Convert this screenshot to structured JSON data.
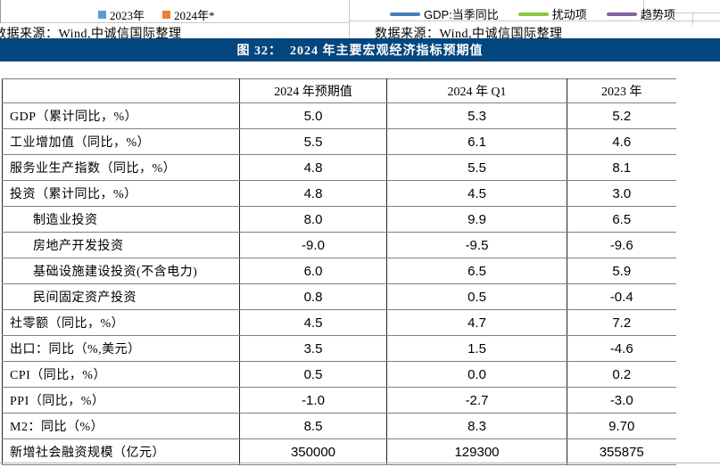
{
  "top_area": {
    "left_legend": {
      "items": [
        {
          "name": "2023-series",
          "label": "2023年",
          "color": "#5B9BD5",
          "marker": "square"
        },
        {
          "name": "2024-series",
          "label": "2024年*",
          "color": "#ED7D31",
          "marker": "square"
        }
      ],
      "source": "数据来源：Wind,中诚信国际整理"
    },
    "right_legend": {
      "items": [
        {
          "name": "gdp-line",
          "label": "GDP:当季同比",
          "color": "#4A7EBB",
          "marker": "line"
        },
        {
          "name": "noise-line",
          "label": "扰动项",
          "color": "#8DC63F",
          "marker": "line"
        },
        {
          "name": "trend-line",
          "label": "趋势项",
          "color": "#8064A2",
          "marker": "line"
        }
      ],
      "source": "数据来源：Wind,中诚信国际整理"
    }
  },
  "banner": {
    "title": "图 32：  2024 年主要宏观经济指标预期值",
    "bg": "#04477E",
    "fg": "#FFFFFF"
  },
  "table": {
    "columns": [
      "",
      "2024 年预期值",
      "2024 年 Q1",
      "2023 年"
    ],
    "rows": [
      {
        "label": "GDP（累计同比，%）",
        "indent": false,
        "values": [
          "5.0",
          "5.3",
          "5.2"
        ]
      },
      {
        "label": "工业增加值（同比，%）",
        "indent": false,
        "values": [
          "5.5",
          "6.1",
          "4.6"
        ]
      },
      {
        "label": "服务业生产指数（同比，%）",
        "indent": false,
        "values": [
          "4.8",
          "5.5",
          "8.1"
        ]
      },
      {
        "label": "投资（累计同比，%）",
        "indent": false,
        "values": [
          "4.8",
          "4.5",
          "3.0"
        ]
      },
      {
        "label": "制造业投资",
        "indent": true,
        "values": [
          "8.0",
          "9.9",
          "6.5"
        ]
      },
      {
        "label": "房地产开发投资",
        "indent": true,
        "values": [
          "-9.0",
          "-9.5",
          "-9.6"
        ]
      },
      {
        "label": "基础设施建设投资(不含电力)",
        "indent": true,
        "values": [
          "6.0",
          "6.5",
          "5.9"
        ]
      },
      {
        "label": "民间固定资产投资",
        "indent": true,
        "values": [
          "0.8",
          "0.5",
          "-0.4"
        ]
      },
      {
        "label": "社零额（同比，%）",
        "indent": false,
        "values": [
          "4.5",
          "4.7",
          "7.2"
        ]
      },
      {
        "label": "出口：同比（%,美元）",
        "indent": false,
        "values": [
          "3.5",
          "1.5",
          "-4.6"
        ]
      },
      {
        "label": "CPI（同比，%）",
        "indent": false,
        "values": [
          "0.5",
          "0.0",
          "0.2"
        ]
      },
      {
        "label": "PPI（同比，%）",
        "indent": false,
        "values": [
          "-1.0",
          "-2.7",
          "-3.0"
        ]
      },
      {
        "label": "M2：同比（%）",
        "indent": false,
        "values": [
          "8.5",
          "8.3",
          "9.70"
        ]
      },
      {
        "label": "新增社会融资规模（亿元）",
        "indent": false,
        "values": [
          "350000",
          "129300",
          "355875"
        ]
      }
    ]
  }
}
